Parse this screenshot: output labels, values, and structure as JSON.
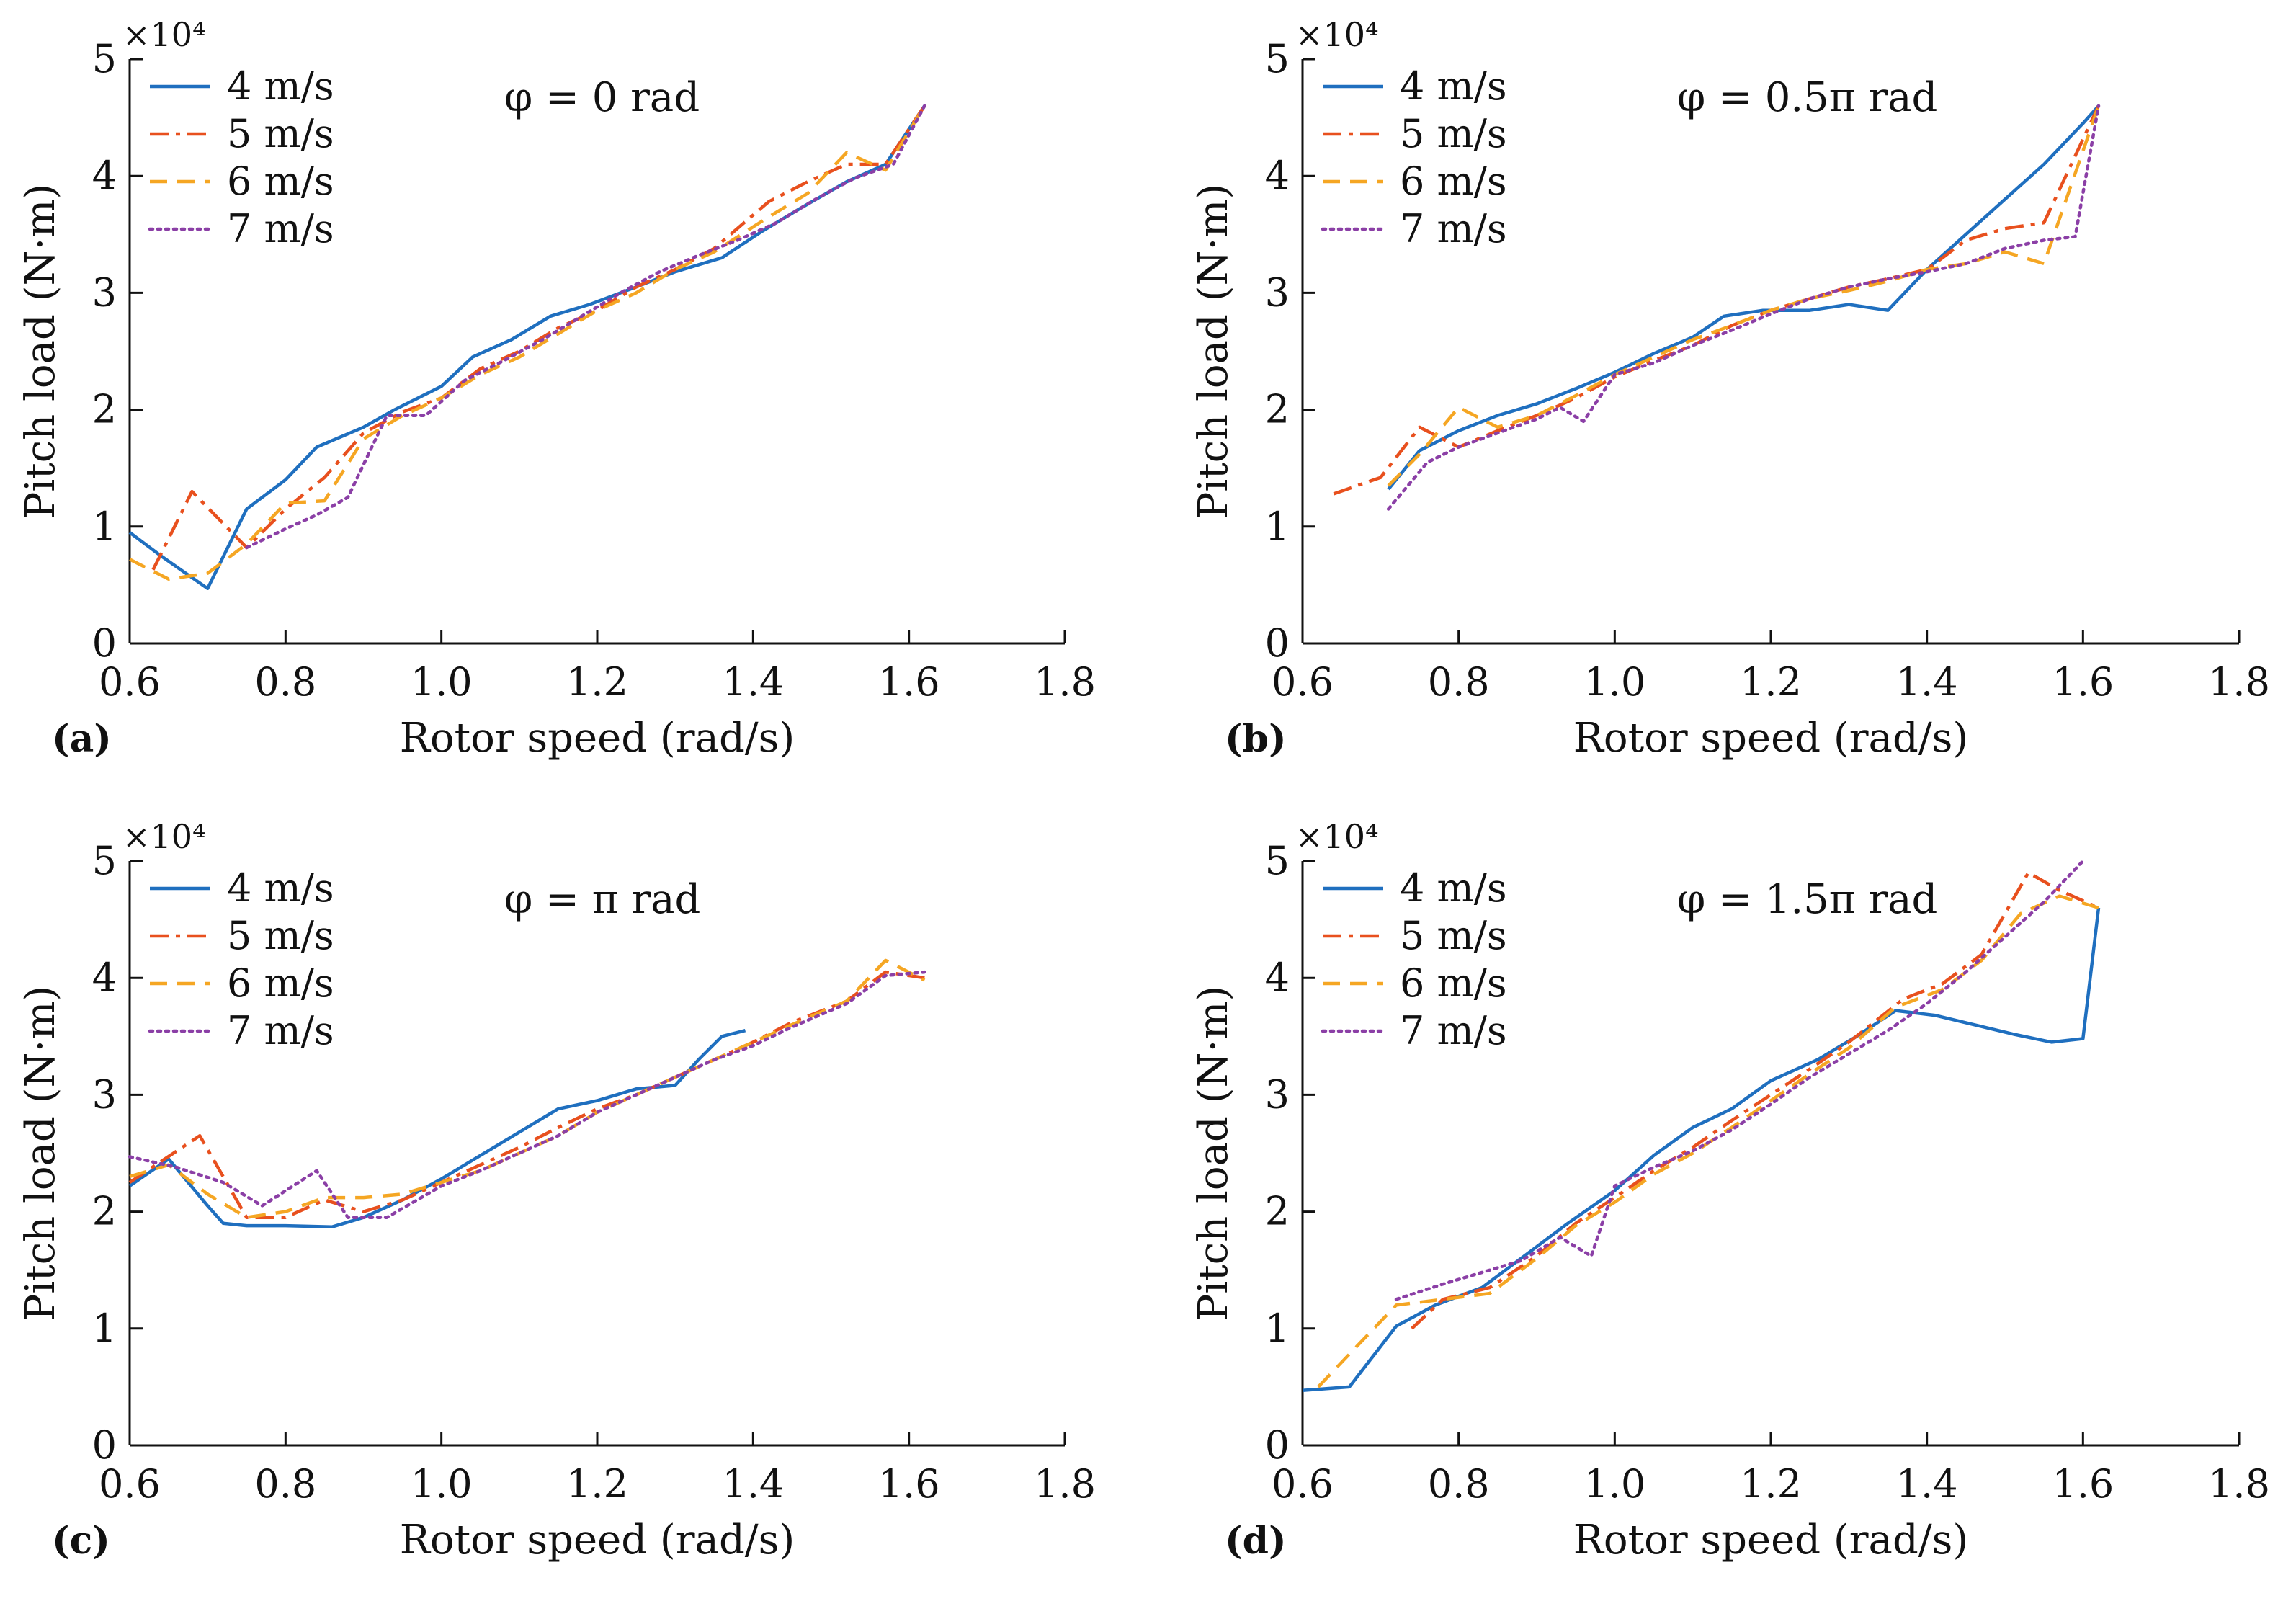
{
  "colors": {
    "4 m/s": "#1f6fbf",
    "5 m/s": "#e8501e",
    "6 m/s": "#f5a623",
    "7 m/s": "#8b3fa6"
  },
  "chart_data": [
    {
      "type": "line",
      "panel_label": "(a)",
      "annotation": "φ = 0 rad",
      "xlabel": "Rotor speed (rad/s)",
      "ylabel": "Pitch load (N·m)",
      "yexponent": "×10⁴",
      "xlim": [
        0.6,
        1.8
      ],
      "ylim": [
        0,
        5
      ],
      "xticks": [
        "0.6",
        "0.8",
        "1.0",
        "1.2",
        "1.4",
        "1.6",
        "1.8"
      ],
      "yticks": [
        "0",
        "1",
        "2",
        "3",
        "4",
        "5"
      ],
      "legend": "top-left",
      "series": [
        {
          "name": "4 m/s",
          "style": "solid",
          "color": "#1f6fbf",
          "x": [
            0.6,
            0.64,
            0.7,
            0.75,
            0.8,
            0.84,
            0.9,
            0.94,
            1.0,
            1.04,
            1.09,
            1.14,
            1.19,
            1.25,
            1.3,
            1.36,
            1.41,
            1.46,
            1.52,
            1.57,
            1.62
          ],
          "y": [
            0.95,
            0.75,
            0.47,
            1.15,
            1.4,
            1.68,
            1.85,
            2.0,
            2.2,
            2.45,
            2.6,
            2.8,
            2.9,
            3.05,
            3.18,
            3.3,
            3.52,
            3.72,
            3.95,
            4.1,
            4.6
          ]
        },
        {
          "name": "5 m/s",
          "style": "dashdot",
          "color": "#e8501e",
          "x": [
            0.63,
            0.68,
            0.75,
            0.8,
            0.85,
            0.9,
            0.95,
            1.0,
            1.05,
            1.1,
            1.15,
            1.2,
            1.25,
            1.3,
            1.35,
            1.42,
            1.47,
            1.52,
            1.57,
            1.62
          ],
          "y": [
            0.63,
            1.3,
            0.82,
            1.15,
            1.42,
            1.8,
            1.98,
            2.1,
            2.35,
            2.5,
            2.7,
            2.85,
            3.05,
            3.2,
            3.38,
            3.78,
            3.95,
            4.1,
            4.1,
            4.6
          ]
        },
        {
          "name": "6 m/s",
          "style": "dashed",
          "color": "#f5a623",
          "x": [
            0.6,
            0.65,
            0.7,
            0.75,
            0.8,
            0.85,
            0.9,
            0.95,
            1.0,
            1.05,
            1.1,
            1.15,
            1.2,
            1.25,
            1.3,
            1.35,
            1.42,
            1.47,
            1.52,
            1.57,
            1.62
          ],
          "y": [
            0.72,
            0.55,
            0.6,
            0.85,
            1.2,
            1.22,
            1.75,
            1.95,
            2.1,
            2.3,
            2.45,
            2.65,
            2.85,
            3.0,
            3.2,
            3.35,
            3.65,
            3.85,
            4.2,
            4.05,
            4.6
          ]
        },
        {
          "name": "7 m/s",
          "style": "dotted",
          "color": "#8b3fa6",
          "x": [
            0.75,
            0.8,
            0.84,
            0.88,
            0.93,
            0.98,
            1.03,
            1.08,
            1.13,
            1.18,
            1.23,
            1.28,
            1.33,
            1.38,
            1.43,
            1.48,
            1.53,
            1.58,
            1.62
          ],
          "y": [
            0.82,
            0.98,
            1.1,
            1.25,
            1.95,
            1.95,
            2.25,
            2.42,
            2.6,
            2.8,
            3.0,
            3.18,
            3.32,
            3.45,
            3.6,
            3.8,
            3.98,
            4.1,
            4.6
          ]
        }
      ]
    },
    {
      "type": "line",
      "panel_label": "(b)",
      "annotation": "φ = 0.5π rad",
      "xlabel": "Rotor speed (rad/s)",
      "ylabel": "Pitch load (N·m)",
      "yexponent": "×10⁴",
      "xlim": [
        0.6,
        1.8
      ],
      "ylim": [
        0,
        5
      ],
      "xticks": [
        "0.6",
        "0.8",
        "1.0",
        "1.2",
        "1.4",
        "1.6",
        "1.8"
      ],
      "yticks": [
        "0",
        "1",
        "2",
        "3",
        "4",
        "5"
      ],
      "legend": "top-left",
      "series": [
        {
          "name": "4 m/s",
          "style": "solid",
          "color": "#1f6fbf",
          "x": [
            0.71,
            0.75,
            0.8,
            0.85,
            0.9,
            0.95,
            1.0,
            1.05,
            1.1,
            1.14,
            1.19,
            1.25,
            1.3,
            1.35,
            1.4,
            1.45,
            1.5,
            1.55,
            1.6,
            1.62
          ],
          "y": [
            1.32,
            1.65,
            1.82,
            1.95,
            2.05,
            2.18,
            2.32,
            2.48,
            2.62,
            2.8,
            2.85,
            2.85,
            2.9,
            2.85,
            3.2,
            3.5,
            3.8,
            4.1,
            4.45,
            4.6
          ]
        },
        {
          "name": "5 m/s",
          "style": "dashdot",
          "color": "#e8501e",
          "x": [
            0.64,
            0.7,
            0.75,
            0.8,
            0.85,
            0.9,
            0.95,
            1.0,
            1.05,
            1.1,
            1.15,
            1.2,
            1.25,
            1.3,
            1.35,
            1.4,
            1.45,
            1.5,
            1.55,
            1.62
          ],
          "y": [
            1.28,
            1.42,
            1.85,
            1.68,
            1.82,
            1.95,
            2.1,
            2.28,
            2.42,
            2.55,
            2.72,
            2.85,
            2.95,
            3.05,
            3.12,
            3.2,
            3.45,
            3.55,
            3.6,
            4.6
          ]
        },
        {
          "name": "6 m/s",
          "style": "dashed",
          "color": "#f5a623",
          "x": [
            0.71,
            0.75,
            0.8,
            0.85,
            0.9,
            0.95,
            1.0,
            1.05,
            1.1,
            1.15,
            1.2,
            1.25,
            1.3,
            1.35,
            1.4,
            1.45,
            1.5,
            1.55,
            1.62
          ],
          "y": [
            1.35,
            1.62,
            2.02,
            1.85,
            1.95,
            2.12,
            2.3,
            2.45,
            2.6,
            2.72,
            2.85,
            2.95,
            3.02,
            3.1,
            3.2,
            3.25,
            3.35,
            3.25,
            4.6
          ]
        },
        {
          "name": "7 m/s",
          "style": "dotted",
          "color": "#8b3fa6",
          "x": [
            0.71,
            0.76,
            0.8,
            0.85,
            0.9,
            0.93,
            0.96,
            1.0,
            1.05,
            1.1,
            1.15,
            1.2,
            1.25,
            1.3,
            1.35,
            1.4,
            1.45,
            1.5,
            1.55,
            1.59,
            1.62
          ],
          "y": [
            1.15,
            1.55,
            1.68,
            1.8,
            1.92,
            2.02,
            1.9,
            2.3,
            2.4,
            2.55,
            2.68,
            2.82,
            2.95,
            3.05,
            3.12,
            3.18,
            3.25,
            3.38,
            3.45,
            3.48,
            4.6
          ]
        }
      ]
    },
    {
      "type": "line",
      "panel_label": "(c)",
      "annotation": "φ = π rad",
      "xlabel": "Rotor speed (rad/s)",
      "ylabel": "Pitch load (N·m)",
      "yexponent": "×10⁴",
      "xlim": [
        0.6,
        1.8
      ],
      "ylim": [
        0,
        5
      ],
      "xticks": [
        "0.6",
        "0.8",
        "1.0",
        "1.2",
        "1.4",
        "1.6",
        "1.8"
      ],
      "yticks": [
        "0",
        "1",
        "2",
        "3",
        "4",
        "5"
      ],
      "legend": "top-left",
      "series": [
        {
          "name": "4 m/s",
          "style": "solid",
          "color": "#1f6fbf",
          "x": [
            0.6,
            0.65,
            0.7,
            0.72,
            0.75,
            0.8,
            0.86,
            0.9,
            0.95,
            1.0,
            1.05,
            1.1,
            1.15,
            1.2,
            1.25,
            1.3,
            1.33,
            1.36,
            1.39
          ],
          "y": [
            2.22,
            2.45,
            2.05,
            1.9,
            1.88,
            1.88,
            1.87,
            1.95,
            2.1,
            2.28,
            2.48,
            2.68,
            2.88,
            2.95,
            3.05,
            3.08,
            3.3,
            3.5,
            3.55
          ]
        },
        {
          "name": "5 m/s",
          "style": "dashdot",
          "color": "#e8501e",
          "x": [
            0.6,
            0.69,
            0.75,
            0.8,
            0.85,
            0.9,
            0.95,
            1.0,
            1.05,
            1.1,
            1.15,
            1.2,
            1.25,
            1.3,
            1.35,
            1.4,
            1.45,
            1.52,
            1.57,
            1.62
          ],
          "y": [
            2.25,
            2.65,
            1.95,
            1.95,
            2.1,
            2.0,
            2.1,
            2.25,
            2.4,
            2.55,
            2.72,
            2.88,
            3.0,
            3.15,
            3.3,
            3.45,
            3.62,
            3.8,
            4.05,
            4.0
          ]
        },
        {
          "name": "6 m/s",
          "style": "dashed",
          "color": "#f5a623",
          "x": [
            0.6,
            0.65,
            0.7,
            0.75,
            0.8,
            0.85,
            0.9,
            0.95,
            1.0,
            1.05,
            1.1,
            1.15,
            1.2,
            1.25,
            1.3,
            1.35,
            1.4,
            1.45,
            1.52,
            1.57,
            1.62
          ],
          "y": [
            2.3,
            2.4,
            2.15,
            1.95,
            2.0,
            2.12,
            2.12,
            2.15,
            2.25,
            2.35,
            2.5,
            2.65,
            2.85,
            3.0,
            3.15,
            3.3,
            3.45,
            3.6,
            3.8,
            4.15,
            3.98
          ]
        },
        {
          "name": "7 m/s",
          "style": "dotted",
          "color": "#8b3fa6",
          "x": [
            0.6,
            0.66,
            0.72,
            0.77,
            0.84,
            0.88,
            0.93,
            1.0,
            1.05,
            1.1,
            1.15,
            1.2,
            1.25,
            1.3,
            1.35,
            1.4,
            1.45,
            1.52,
            1.57,
            1.62
          ],
          "y": [
            2.47,
            2.38,
            2.25,
            2.05,
            2.35,
            1.95,
            1.95,
            2.22,
            2.35,
            2.5,
            2.65,
            2.85,
            3.0,
            3.15,
            3.3,
            3.42,
            3.58,
            3.78,
            4.02,
            4.05
          ]
        }
      ]
    },
    {
      "type": "line",
      "panel_label": "(d)",
      "annotation": "φ = 1.5π rad",
      "xlabel": "Rotor speed (rad/s)",
      "ylabel": "Pitch load (N·m)",
      "yexponent": "×10⁴",
      "xlim": [
        0.6,
        1.8
      ],
      "ylim": [
        0,
        5
      ],
      "xticks": [
        "0.6",
        "0.8",
        "1.0",
        "1.2",
        "1.4",
        "1.6",
        "1.8"
      ],
      "yticks": [
        "0",
        "1",
        "2",
        "3",
        "4",
        "5"
      ],
      "legend": "top-left",
      "series": [
        {
          "name": "4 m/s",
          "style": "solid",
          "color": "#1f6fbf",
          "x": [
            0.6,
            0.66,
            0.72,
            0.77,
            0.83,
            0.88,
            0.94,
            1.0,
            1.05,
            1.1,
            1.15,
            1.2,
            1.26,
            1.31,
            1.36,
            1.41,
            1.46,
            1.51,
            1.56,
            1.6,
            1.62
          ],
          "y": [
            0.47,
            0.5,
            1.02,
            1.2,
            1.35,
            1.6,
            1.9,
            2.18,
            2.48,
            2.72,
            2.88,
            3.12,
            3.3,
            3.5,
            3.72,
            3.68,
            3.6,
            3.52,
            3.45,
            3.48,
            4.6
          ]
        },
        {
          "name": "5 m/s",
          "style": "dashdot",
          "color": "#e8501e",
          "x": [
            0.74,
            0.78,
            0.84,
            0.9,
            0.95,
            1.0,
            1.05,
            1.1,
            1.15,
            1.2,
            1.25,
            1.3,
            1.37,
            1.42,
            1.47,
            1.53,
            1.57,
            1.62
          ],
          "y": [
            1.0,
            1.25,
            1.35,
            1.62,
            1.9,
            2.12,
            2.35,
            2.55,
            2.78,
            3.0,
            3.22,
            3.45,
            3.82,
            3.95,
            4.2,
            4.9,
            4.75,
            4.6
          ]
        },
        {
          "name": "6 m/s",
          "style": "dashed",
          "color": "#f5a623",
          "x": [
            0.62,
            0.67,
            0.72,
            0.78,
            0.84,
            0.9,
            0.95,
            1.0,
            1.05,
            1.1,
            1.15,
            1.2,
            1.25,
            1.3,
            1.36,
            1.42,
            1.47,
            1.52,
            1.57,
            1.62
          ],
          "y": [
            0.5,
            0.85,
            1.2,
            1.25,
            1.3,
            1.6,
            1.88,
            2.08,
            2.32,
            2.5,
            2.72,
            2.95,
            3.18,
            3.4,
            3.75,
            3.9,
            4.15,
            4.55,
            4.7,
            4.6
          ]
        },
        {
          "name": "7 m/s",
          "style": "dotted",
          "color": "#8b3fa6",
          "x": [
            0.72,
            0.78,
            0.84,
            0.88,
            0.93,
            0.97,
            1.0,
            1.05,
            1.1,
            1.15,
            1.2,
            1.25,
            1.3,
            1.35,
            1.4,
            1.45,
            1.5,
            1.55,
            1.6
          ],
          "y": [
            1.25,
            1.38,
            1.5,
            1.58,
            1.78,
            1.62,
            2.22,
            2.38,
            2.52,
            2.7,
            2.92,
            3.15,
            3.35,
            3.55,
            3.78,
            4.05,
            4.35,
            4.65,
            5.0
          ]
        }
      ]
    }
  ]
}
